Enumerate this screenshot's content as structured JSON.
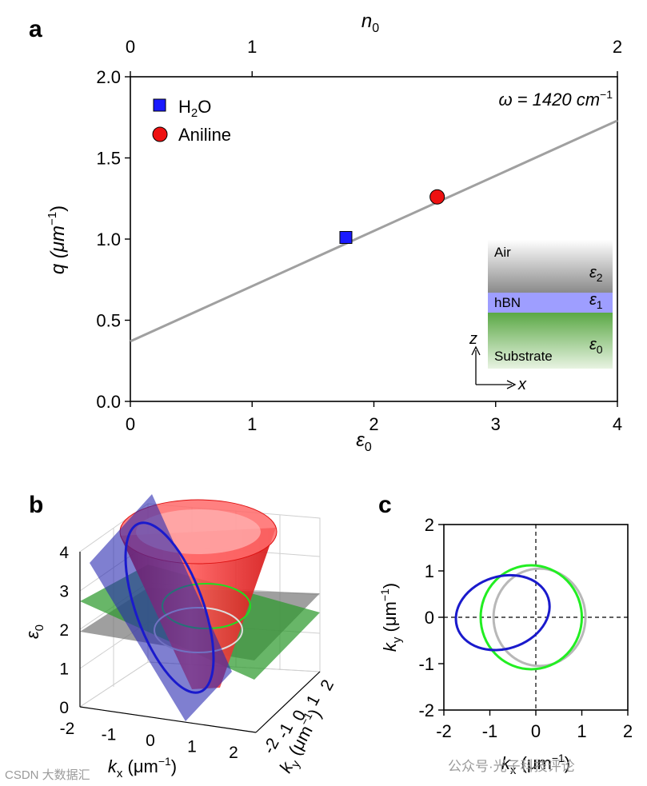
{
  "chart_data": [
    {
      "panel": "a",
      "type": "line",
      "xlabel": "ε",
      "xlabel_sub": "0",
      "ylabel": "q (μm",
      "ylabel_sup": "−1",
      "ylabel_end": ")",
      "top_axis_label": "n",
      "top_axis_sub": "0",
      "xlim": [
        0,
        4
      ],
      "ylim": [
        0,
        2.0
      ],
      "x_ticks": [
        "0",
        "1",
        "2",
        "3",
        "4"
      ],
      "y_ticks": [
        "0.0",
        "0.5",
        "1.0",
        "1.5",
        "2.0"
      ],
      "top_ticks": [
        {
          "label": "0",
          "n": 0
        },
        {
          "label": "1",
          "n": 1
        },
        {
          "label": "2",
          "n": 2
        }
      ],
      "line": {
        "x": [
          0,
          4
        ],
        "y": [
          0.37,
          1.73
        ],
        "color": "#a0a0a0"
      },
      "points": [
        {
          "name": "H",
          "sub": "2",
          "tail": "O",
          "x": 1.77,
          "y": 1.01,
          "marker": "square",
          "color": "#1a1aff"
        },
        {
          "name": "Aniline",
          "x": 2.52,
          "y": 1.26,
          "marker": "circle",
          "color": "#ee1111"
        }
      ],
      "annotation": {
        "text": "ω = 1420 cm",
        "sup": "−1"
      },
      "inset": {
        "layers": [
          {
            "name": "Air",
            "eps": "ε",
            "eps_sub": "2"
          },
          {
            "name": "hBN",
            "eps": "ε",
            "eps_sub": "1"
          },
          {
            "name": "Substrate",
            "eps": "ε",
            "eps_sub": "0"
          }
        ],
        "axes": {
          "z": "z",
          "x": "x"
        }
      }
    },
    {
      "panel": "b",
      "type": "3d-surface",
      "zlabel": "ε",
      "zlabel_sub": "0",
      "xlabel": "k",
      "xlabel_sub": "x",
      "xlabel_unit": " (μm",
      "ylabel": "k",
      "ylabel_sub": "y",
      "ylabel_unit": " (μm",
      "unit_sup": "−1",
      "x_ticks": [
        "-2",
        "-1",
        "0",
        "1",
        "2"
      ],
      "y_ticks": [
        "-2",
        "-1",
        "0",
        "1",
        "2"
      ],
      "z_ticks": [
        "0",
        "1",
        "2",
        "3",
        "4"
      ],
      "planes": [
        {
          "name": "eps0-plane-2",
          "eps": 2,
          "color": "#7a7a7a"
        },
        {
          "name": "eps0-plane-3",
          "eps": 3,
          "color": "#2e9a2e"
        },
        {
          "name": "tilted-plane",
          "color": "#2a2ab0"
        }
      ],
      "cone_color": "#ee1a1a"
    },
    {
      "panel": "c",
      "type": "curves",
      "xlabel": "k",
      "xlabel_sub": "x",
      "xlabel_unit": " (μm",
      "ylabel": "k",
      "ylabel_sub": "y",
      "ylabel_unit": " (μm",
      "unit_sup": "−1",
      "xlim": [
        -2,
        2
      ],
      "ylim": [
        -2,
        2
      ],
      "x_ticks": [
        "-2",
        "-1",
        "0",
        "1",
        "2"
      ],
      "y_ticks": [
        "-2",
        "-1",
        "0",
        "1",
        "2"
      ],
      "series": [
        {
          "name": "gray",
          "color": "#b8b8b8",
          "cx": 0.08,
          "cy": 0,
          "rx": 1.0,
          "ry": 1.05,
          "rot": 0
        },
        {
          "name": "green",
          "color": "#22ee22",
          "cx": -0.1,
          "cy": 0,
          "rx": 1.1,
          "ry": 1.12,
          "rot": 0
        },
        {
          "name": "blue",
          "color": "#1a1acc",
          "cx": -0.72,
          "cy": 0.1,
          "rx": 1.04,
          "ry": 0.78,
          "rot": -18
        }
      ]
    }
  ],
  "labels": {
    "a": "a",
    "b": "b",
    "c": "c"
  },
  "watermarks": {
    "left": "CSDN 大数据汇",
    "right": "公众号·光子科技评论"
  }
}
